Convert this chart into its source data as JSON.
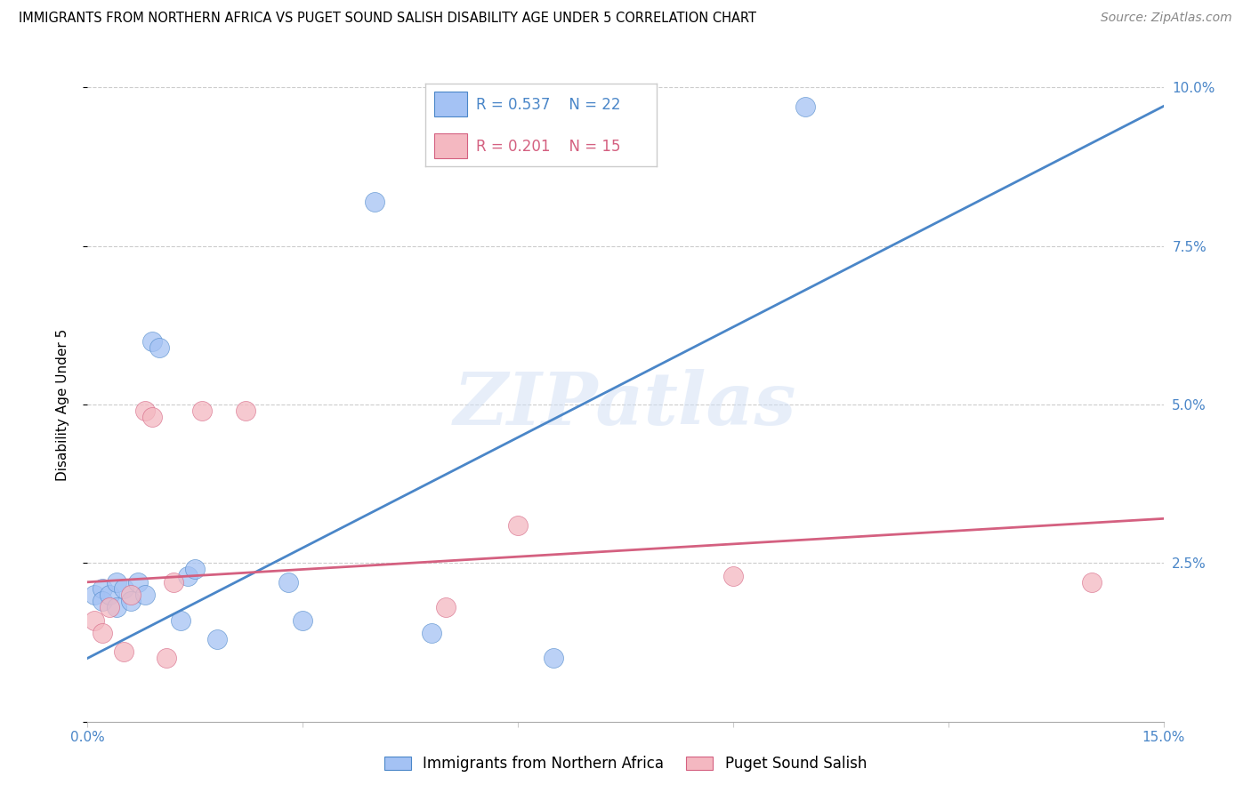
{
  "title": "IMMIGRANTS FROM NORTHERN AFRICA VS PUGET SOUND SALISH DISABILITY AGE UNDER 5 CORRELATION CHART",
  "source": "Source: ZipAtlas.com",
  "ylabel": "Disability Age Under 5",
  "xlim": [
    0.0,
    0.15
  ],
  "ylim": [
    0.0,
    0.1
  ],
  "xticks": [
    0.0,
    0.03,
    0.06,
    0.09,
    0.12,
    0.15
  ],
  "yticks": [
    0.0,
    0.025,
    0.05,
    0.075,
    0.1
  ],
  "xticklabels": [
    "0.0%",
    "",
    "",
    "",
    "",
    "15.0%"
  ],
  "yticklabels_left": [
    "",
    "",
    "",
    "",
    ""
  ],
  "yticklabels_right": [
    "",
    "2.5%",
    "5.0%",
    "7.5%",
    "10.0%"
  ],
  "legend_R_blue": "R = 0.537",
  "legend_N_blue": "N = 22",
  "legend_R_pink": "R = 0.201",
  "legend_N_pink": "N = 15",
  "legend_label_blue": "Immigrants from Northern Africa",
  "legend_label_pink": "Puget Sound Salish",
  "blue_color": "#a4c2f4",
  "pink_color": "#f4b8c1",
  "blue_line_color": "#4a86c8",
  "pink_line_color": "#d46080",
  "watermark": "ZIPatlas",
  "blue_scatter": [
    [
      0.001,
      0.02
    ],
    [
      0.002,
      0.021
    ],
    [
      0.002,
      0.019
    ],
    [
      0.003,
      0.02
    ],
    [
      0.004,
      0.022
    ],
    [
      0.004,
      0.018
    ],
    [
      0.005,
      0.021
    ],
    [
      0.006,
      0.019
    ],
    [
      0.007,
      0.022
    ],
    [
      0.008,
      0.02
    ],
    [
      0.009,
      0.06
    ],
    [
      0.01,
      0.059
    ],
    [
      0.013,
      0.016
    ],
    [
      0.014,
      0.023
    ],
    [
      0.015,
      0.024
    ],
    [
      0.018,
      0.013
    ],
    [
      0.028,
      0.022
    ],
    [
      0.03,
      0.016
    ],
    [
      0.04,
      0.082
    ],
    [
      0.048,
      0.014
    ],
    [
      0.065,
      0.01
    ],
    [
      0.1,
      0.097
    ]
  ],
  "pink_scatter": [
    [
      0.001,
      0.016
    ],
    [
      0.002,
      0.014
    ],
    [
      0.003,
      0.018
    ],
    [
      0.005,
      0.011
    ],
    [
      0.006,
      0.02
    ],
    [
      0.008,
      0.049
    ],
    [
      0.009,
      0.048
    ],
    [
      0.011,
      0.01
    ],
    [
      0.012,
      0.022
    ],
    [
      0.016,
      0.049
    ],
    [
      0.022,
      0.049
    ],
    [
      0.05,
      0.018
    ],
    [
      0.06,
      0.031
    ],
    [
      0.09,
      0.023
    ],
    [
      0.14,
      0.022
    ]
  ],
  "blue_trendline_x": [
    0.0,
    0.15
  ],
  "blue_trendline_y": [
    0.01,
    0.097
  ],
  "pink_trendline_x": [
    0.0,
    0.15
  ],
  "pink_trendline_y": [
    0.022,
    0.032
  ]
}
